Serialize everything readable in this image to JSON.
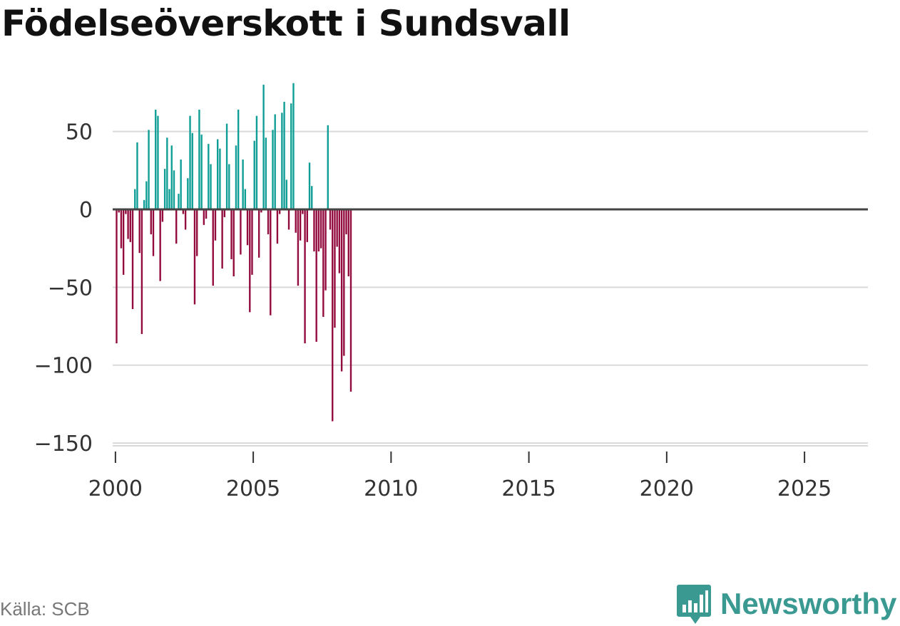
{
  "title": "Födelseöverskott i Sundsvall",
  "source": "Källa: SCB",
  "brand": {
    "name": "Newsworthy",
    "icon": "newsworthy-logo-icon"
  },
  "colors": {
    "positive": "#0f9e96",
    "negative": "#930a3d",
    "grid": "#d9d9d9",
    "zero": "#444444",
    "axis": "#333333",
    "brand": "#3a9a92"
  },
  "chart_data": {
    "type": "bar",
    "title": "Födelseöverskott i Sundsvall",
    "xlabel": "",
    "ylabel": "",
    "ylim": [
      -160,
      85
    ],
    "xlim": [
      1999.9,
      2027.3
    ],
    "yticks": [
      50,
      0,
      -50,
      -100,
      -150
    ],
    "ytick_labels": [
      "50",
      "0",
      "−50",
      "−100",
      "−150"
    ],
    "xticks": [
      2000,
      2005,
      2010,
      2015,
      2020,
      2025
    ],
    "xtick_labels": [
      "2000",
      "2005",
      "2010",
      "2015",
      "2020",
      "2025"
    ],
    "grid": true,
    "legend": "none",
    "start_year": 2000,
    "frequency": "monthly",
    "values": [
      -86,
      -2,
      -25,
      -42,
      -3,
      -19,
      -21,
      -64,
      13,
      43,
      -28,
      -80,
      6,
      18,
      51,
      -16,
      -30,
      64,
      60,
      -46,
      -8,
      26,
      46,
      13,
      41,
      25,
      -22,
      10,
      32,
      -3,
      -13,
      20,
      60,
      49,
      -61,
      -30,
      64,
      48,
      -10,
      -6,
      42,
      29,
      -49,
      -20,
      45,
      39,
      -38,
      -5,
      55,
      29,
      -32,
      -43,
      41,
      64,
      -29,
      32,
      13,
      -23,
      -66,
      -42,
      44,
      60,
      -31,
      -2,
      80,
      46,
      -16,
      -68,
      51,
      61,
      -22,
      -3,
      62,
      69,
      19,
      -13,
      68,
      81,
      -15,
      -49,
      -20,
      -3,
      -86,
      -21,
      30,
      15,
      -27,
      -85,
      -27,
      -25,
      -69,
      -52,
      54,
      -13,
      -136,
      -76,
      -24,
      -41,
      -104,
      -94,
      -16,
      -43,
      -117
    ]
  }
}
